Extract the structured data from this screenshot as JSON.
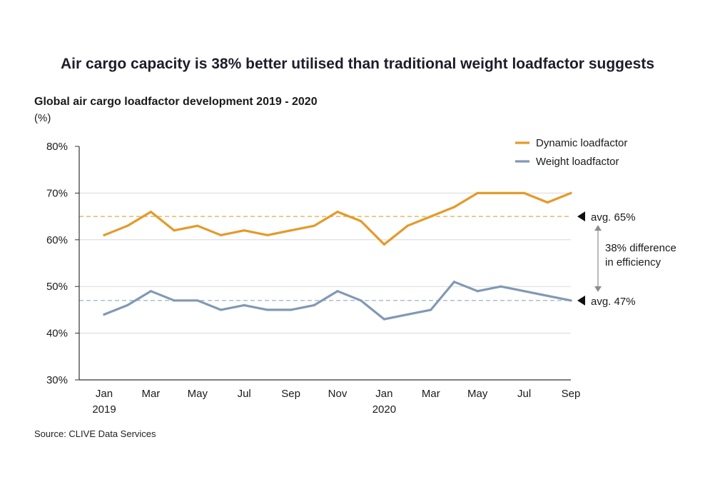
{
  "headline": "Air cargo capacity is 38% better utilised than traditional weight loadfactor suggests",
  "source": "Source: CLIVE Data Services",
  "colors": {
    "dynamic": "#e49a2a",
    "weight": "#8199b4",
    "grid": "#d9d9d9",
    "axis": "#333333",
    "arrow": "#8c8c8c"
  },
  "chart_data": {
    "type": "line",
    "title": "Global air cargo loadfactor development 2019 - 2020",
    "ylabel": "(%)",
    "ylim": [
      30,
      80
    ],
    "ytick_labels": [
      "30%",
      "40%",
      "50%",
      "60%",
      "70%",
      "80%"
    ],
    "x": [
      "Jan 2019",
      "Feb 2019",
      "Mar 2019",
      "Apr 2019",
      "May 2019",
      "Jun 2019",
      "Jul 2019",
      "Aug 2019",
      "Sep 2019",
      "Oct 2019",
      "Nov 2019",
      "Dec 2019",
      "Jan 2020",
      "Feb 2020",
      "Mar 2020",
      "Apr 2020",
      "May 2020",
      "Jun 2020",
      "Jul 2020",
      "Aug 2020",
      "Sep 2020"
    ],
    "xtick_labels": [
      {
        "index": 0,
        "line1": "Jan",
        "line2": "2019"
      },
      {
        "index": 2,
        "line1": "Mar",
        "line2": ""
      },
      {
        "index": 4,
        "line1": "May",
        "line2": ""
      },
      {
        "index": 6,
        "line1": "Jul",
        "line2": ""
      },
      {
        "index": 8,
        "line1": "Sep",
        "line2": ""
      },
      {
        "index": 10,
        "line1": "Nov",
        "line2": ""
      },
      {
        "index": 12,
        "line1": "Jan",
        "line2": "2020"
      },
      {
        "index": 14,
        "line1": "Mar",
        "line2": ""
      },
      {
        "index": 16,
        "line1": "May",
        "line2": ""
      },
      {
        "index": 18,
        "line1": "Jul",
        "line2": ""
      },
      {
        "index": 20,
        "line1": "Sep",
        "line2": ""
      }
    ],
    "series": [
      {
        "name": "Dynamic loadfactor",
        "color_key": "dynamic",
        "values": [
          61,
          63,
          66,
          62,
          63,
          61,
          62,
          61,
          62,
          63,
          66,
          64,
          59,
          63,
          65,
          67,
          70,
          70,
          70,
          68,
          70
        ]
      },
      {
        "name": "Weight loadfactor",
        "color_key": "weight",
        "values": [
          44,
          46,
          49,
          47,
          47,
          45,
          46,
          45,
          45,
          46,
          49,
          47,
          43,
          44,
          45,
          51,
          49,
          50,
          49,
          48,
          47
        ]
      }
    ],
    "averages": [
      {
        "label": "avg.  65%",
        "value": 65,
        "color_key": "dynamic"
      },
      {
        "label": "avg. 47%",
        "value": 47,
        "color_key": "weight"
      }
    ],
    "difference_note": [
      "38% difference",
      "in efficiency"
    ],
    "grid": true,
    "legend": "top-right"
  }
}
